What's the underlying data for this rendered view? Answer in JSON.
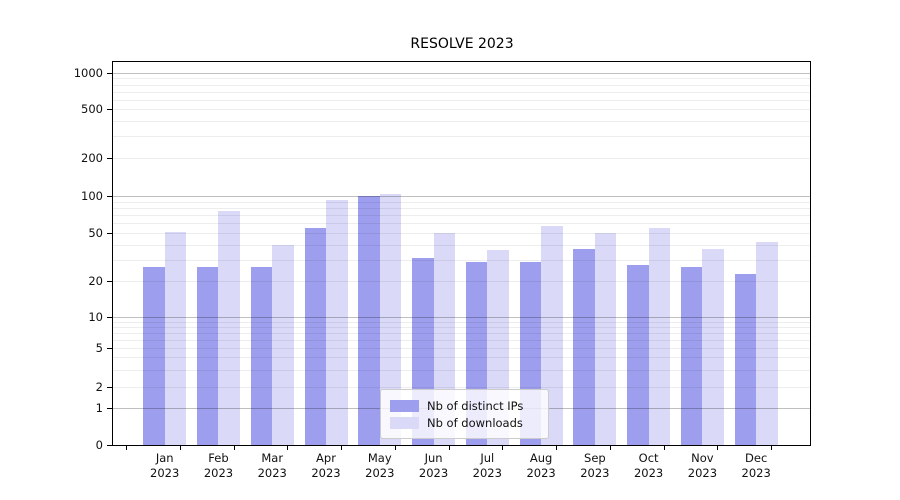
{
  "title": "RESOLVE 2023",
  "chart_data": {
    "type": "bar",
    "title": "RESOLVE 2023",
    "categories": [
      "Jan 2023",
      "Feb 2023",
      "Mar 2023",
      "Apr 2023",
      "May 2023",
      "Jun 2023",
      "Jul 2023",
      "Aug 2023",
      "Sep 2023",
      "Oct 2023",
      "Nov 2023",
      "Dec 2023"
    ],
    "series": [
      {
        "name": "Nb of distinct IPs",
        "color": "#9e9eee",
        "values": [
          26,
          26,
          26,
          55,
          100,
          31,
          29,
          29,
          37,
          27,
          26,
          23
        ]
      },
      {
        "name": "Nb of downloads",
        "color": "#dadaf8",
        "values": [
          51,
          75,
          40,
          92,
          103,
          50,
          36,
          57,
          50,
          55,
          37,
          42
        ]
      }
    ],
    "xlabel": "",
    "ylabel": "",
    "yscale": "symlog",
    "ylim": [
      0,
      1258
    ],
    "yticks": [
      0,
      1,
      2,
      5,
      10,
      20,
      50,
      100,
      200,
      500,
      1000
    ],
    "grid": "log minor + major gridlines, drawn over bars",
    "legend_position": "lower center"
  }
}
